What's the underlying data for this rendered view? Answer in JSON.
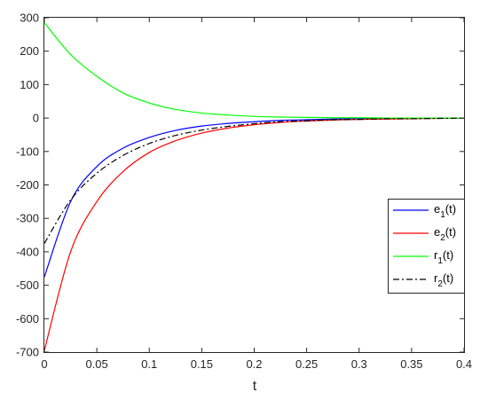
{
  "chart_data": {
    "type": "line",
    "title": "",
    "xlabel": "t",
    "ylabel": "",
    "xlim": [
      0,
      0.4
    ],
    "ylim": [
      -700,
      300
    ],
    "xticks": [
      0,
      0.05,
      0.1,
      0.15,
      0.2,
      0.25,
      0.3,
      0.35,
      0.4
    ],
    "yticks": [
      -700,
      -600,
      -500,
      -400,
      -300,
      -200,
      -100,
      0,
      100,
      200,
      300
    ],
    "xtick_labels": [
      "0",
      "0.05",
      "0.1",
      "0.15",
      "0.2",
      "0.25",
      "0.3",
      "0.35",
      "0.4"
    ],
    "ytick_labels": [
      "-700",
      "-600",
      "-500",
      "-400",
      "-300",
      "-200",
      "-100",
      "0",
      "100",
      "200",
      "300"
    ],
    "grid": false,
    "legend_position": "right",
    "x": [
      0,
      0.025,
      0.05,
      0.075,
      0.1,
      0.125,
      0.15,
      0.175,
      0.2,
      0.225,
      0.25,
      0.275,
      0.3,
      0.325,
      0.35,
      0.375,
      0.4
    ],
    "series": [
      {
        "name": "e",
        "subscript": "1",
        "suffix": "(t)",
        "color": "#0000ff",
        "dash": "solid",
        "values": [
          -475,
          -250,
          -145,
          -90,
          -58,
          -37,
          -24,
          -16,
          -11,
          -7,
          -5,
          -3,
          -2,
          -1,
          -1,
          0,
          0
        ]
      },
      {
        "name": "e",
        "subscript": "2",
        "suffix": "(t)",
        "color": "#ff0000",
        "dash": "solid",
        "values": [
          -695,
          -400,
          -250,
          -160,
          -103,
          -68,
          -45,
          -30,
          -20,
          -13,
          -9,
          -6,
          -4,
          -3,
          -2,
          -1,
          0
        ]
      },
      {
        "name": "r",
        "subscript": "1",
        "suffix": "(t)",
        "color": "#00ff00",
        "dash": "solid",
        "values": [
          285,
          190,
          125,
          75,
          45,
          26,
          15,
          9,
          5,
          3,
          2,
          1,
          1,
          0,
          0,
          0,
          0
        ]
      },
      {
        "name": "r",
        "subscript": "2",
        "suffix": "(t)",
        "color": "#000000",
        "dash": "dashdot",
        "values": [
          -375,
          -245,
          -165,
          -112,
          -76,
          -52,
          -36,
          -25,
          -17,
          -11,
          -8,
          -5,
          -4,
          -2,
          -2,
          -1,
          0
        ]
      }
    ]
  }
}
